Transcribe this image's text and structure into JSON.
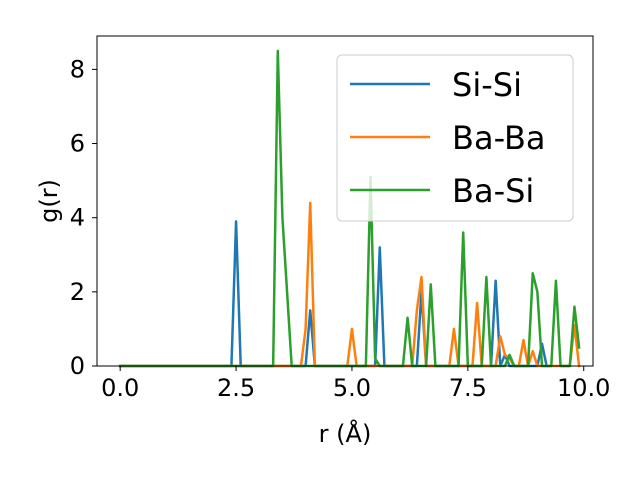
{
  "chart_data": {
    "type": "line",
    "xlabel": "r (Å)",
    "ylabel": "g(r)",
    "xlim": [
      -0.5,
      10.2
    ],
    "ylim": [
      0,
      8.9
    ],
    "xticks": [
      0.0,
      2.5,
      5.0,
      7.5,
      10.0
    ],
    "xtick_labels": [
      "0.0",
      "2.5",
      "5.0",
      "7.5",
      "10.0"
    ],
    "yticks": [
      0,
      2,
      4,
      6,
      8
    ],
    "ytick_labels": [
      "0",
      "2",
      "4",
      "6",
      "8"
    ],
    "grid": false,
    "legend_position": "upper-right",
    "series": [
      {
        "name": "Si-Si",
        "color": "#1f77b4",
        "points": [
          [
            0.0,
            0
          ],
          [
            2.4,
            0
          ],
          [
            2.5,
            3.9
          ],
          [
            2.6,
            0
          ],
          [
            4.0,
            0
          ],
          [
            4.1,
            1.5
          ],
          [
            4.2,
            0
          ],
          [
            5.5,
            0
          ],
          [
            5.6,
            3.2
          ],
          [
            5.7,
            0
          ],
          [
            6.4,
            0
          ],
          [
            6.5,
            2.0
          ],
          [
            6.6,
            0
          ],
          [
            8.0,
            0
          ],
          [
            8.1,
            2.3
          ],
          [
            8.2,
            0
          ],
          [
            8.3,
            0.3
          ],
          [
            8.4,
            0
          ],
          [
            9.0,
            0
          ],
          [
            9.1,
            0.6
          ],
          [
            9.2,
            0
          ]
        ]
      },
      {
        "name": "Ba-Ba",
        "color": "#ff7f0e",
        "points": [
          [
            0.0,
            0
          ],
          [
            3.9,
            0
          ],
          [
            4.0,
            1.0
          ],
          [
            4.1,
            4.4
          ],
          [
            4.2,
            0
          ],
          [
            4.9,
            0
          ],
          [
            5.0,
            1.0
          ],
          [
            5.1,
            0
          ],
          [
            6.3,
            0
          ],
          [
            6.4,
            1.5
          ],
          [
            6.5,
            2.4
          ],
          [
            6.6,
            0
          ],
          [
            7.1,
            0
          ],
          [
            7.2,
            1.0
          ],
          [
            7.3,
            0
          ],
          [
            7.6,
            0
          ],
          [
            7.7,
            1.7
          ],
          [
            7.8,
            0
          ],
          [
            8.1,
            0
          ],
          [
            8.2,
            0.8
          ],
          [
            8.3,
            0.3
          ],
          [
            8.4,
            0.2
          ],
          [
            8.5,
            0
          ],
          [
            8.6,
            0
          ],
          [
            8.7,
            0.7
          ],
          [
            8.8,
            0
          ],
          [
            8.9,
            0.4
          ],
          [
            9.0,
            0
          ],
          [
            9.7,
            0
          ],
          [
            9.8,
            1.1
          ],
          [
            9.9,
            0
          ]
        ]
      },
      {
        "name": "Ba-Si",
        "color": "#2ca02c",
        "points": [
          [
            0.0,
            0
          ],
          [
            3.3,
            0
          ],
          [
            3.4,
            8.5
          ],
          [
            3.5,
            4.0
          ],
          [
            3.7,
            0
          ],
          [
            5.3,
            0
          ],
          [
            5.4,
            5.1
          ],
          [
            5.5,
            0.2
          ],
          [
            5.6,
            0
          ],
          [
            6.1,
            0
          ],
          [
            6.2,
            1.3
          ],
          [
            6.3,
            0
          ],
          [
            6.6,
            0
          ],
          [
            6.7,
            2.2
          ],
          [
            6.8,
            0
          ],
          [
            7.3,
            0
          ],
          [
            7.4,
            3.6
          ],
          [
            7.5,
            0
          ],
          [
            7.8,
            0
          ],
          [
            7.9,
            2.4
          ],
          [
            8.0,
            0
          ],
          [
            8.3,
            0
          ],
          [
            8.4,
            0.3
          ],
          [
            8.5,
            0
          ],
          [
            8.8,
            0
          ],
          [
            8.9,
            2.5
          ],
          [
            9.0,
            2.0
          ],
          [
            9.1,
            0
          ],
          [
            9.3,
            0
          ],
          [
            9.4,
            2.3
          ],
          [
            9.5,
            0
          ],
          [
            9.7,
            0
          ],
          [
            9.8,
            1.6
          ],
          [
            9.9,
            0.5
          ]
        ]
      }
    ]
  }
}
